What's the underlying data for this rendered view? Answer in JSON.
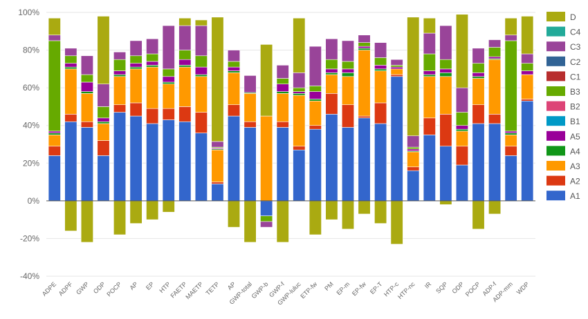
{
  "chart_data": {
    "type": "bar",
    "stacked": true,
    "title": "",
    "xlabel": "",
    "ylabel": "",
    "ylim": [
      -40,
      100
    ],
    "yticks": [
      -40,
      -20,
      0,
      20,
      40,
      60,
      80,
      100
    ],
    "ytick_suffix": "%",
    "grid": true,
    "legend_position": "right",
    "categories": [
      "ADPE",
      "ADPF",
      "GWP",
      "ODP",
      "POCP",
      "AP",
      "EP",
      "HTP",
      "FAETP",
      "MAETP",
      "TETP",
      "AP",
      "GWP-total",
      "GWP-b",
      "GWP-f",
      "GWP-luluc",
      "ETP-fw",
      "PM",
      "EP-m",
      "EP-fw",
      "EP-T",
      "HTP-c",
      "HTP-nc",
      "IR",
      "SQP",
      "ODP",
      "POCP",
      "ADP-f",
      "ADP-mm",
      "WDP"
    ],
    "series": [
      {
        "name": "A1",
        "color": "#3366cc",
        "values": [
          24,
          42,
          39,
          24,
          47,
          45,
          41,
          43,
          42,
          36,
          9,
          45,
          39,
          -8,
          39,
          27,
          38,
          46,
          39,
          44,
          41,
          66,
          16,
          35,
          29,
          19,
          41,
          41,
          24,
          53
        ]
      },
      {
        "name": "A2",
        "color": "#dc3912",
        "values": [
          5,
          4,
          3,
          8,
          4,
          7,
          8,
          6,
          8,
          11,
          1,
          6,
          3,
          0,
          3,
          2,
          2,
          11,
          12,
          1,
          11,
          1,
          2,
          9,
          17,
          10,
          10,
          5,
          5,
          1
        ]
      },
      {
        "name": "A3",
        "color": "#ff9900",
        "values": [
          6,
          24,
          15,
          9,
          15,
          18,
          22,
          13,
          21,
          19,
          17,
          17,
          15,
          45,
          15,
          27,
          13,
          10,
          15,
          35,
          17,
          3,
          8,
          22,
          20,
          8,
          14,
          29,
          6,
          13
        ]
      },
      {
        "name": "A4",
        "color": "#109618",
        "values": [
          1,
          1,
          1,
          1,
          1,
          1,
          1,
          1,
          1,
          1,
          0.5,
          1,
          0.5,
          0,
          1,
          1,
          1,
          1,
          2,
          1,
          1,
          0,
          0.5,
          1,
          2,
          1,
          1,
          0.5,
          1,
          0
        ]
      },
      {
        "name": "A5",
        "color": "#990099",
        "values": [
          1,
          2,
          5,
          2,
          2,
          2,
          2,
          3,
          3,
          4,
          0.5,
          2,
          0,
          0,
          4,
          1,
          4,
          2,
          2,
          1,
          2,
          1,
          1,
          2,
          2,
          2,
          2,
          1,
          1,
          2
        ]
      },
      {
        "name": "B1",
        "color": "#0099c6",
        "values": [
          0,
          0,
          0,
          0,
          0,
          0,
          0,
          0,
          0,
          0,
          0,
          0,
          0,
          0,
          0,
          0,
          0,
          0,
          0,
          0,
          0,
          0,
          0,
          0,
          0,
          0,
          0,
          0,
          0,
          0
        ]
      },
      {
        "name": "B2",
        "color": "#dd4477",
        "values": [
          0,
          0,
          0,
          0,
          0,
          0,
          0,
          0,
          0,
          0,
          0,
          0,
          0,
          0,
          0,
          0,
          0,
          0,
          0,
          0,
          0,
          0,
          0,
          0,
          0,
          0,
          0,
          0,
          0,
          0
        ]
      },
      {
        "name": "B3",
        "color": "#66aa00",
        "values": [
          48,
          4,
          4,
          6,
          6,
          4,
          4,
          4,
          5,
          6,
          0.5,
          3,
          0,
          -3,
          3,
          2,
          3,
          5,
          4,
          2,
          4,
          1,
          1,
          9,
          5,
          7,
          5,
          5,
          48,
          4
        ]
      },
      {
        "name": "C1",
        "color": "#b82e2e",
        "values": [
          0,
          0,
          0,
          0,
          0,
          0,
          0,
          0,
          0,
          0,
          0,
          0,
          0,
          0,
          0,
          0,
          0,
          0,
          0,
          0,
          0,
          0,
          0,
          0,
          0,
          0,
          0,
          0,
          0,
          0
        ]
      },
      {
        "name": "C2",
        "color": "#316395",
        "values": [
          0,
          0,
          0,
          0,
          0,
          0,
          0,
          0,
          0,
          0,
          0,
          0,
          0,
          0,
          0,
          0,
          0,
          0,
          0,
          0,
          0,
          0,
          0,
          0,
          0,
          0,
          0,
          0,
          0,
          0
        ]
      },
      {
        "name": "C3",
        "color": "#994499",
        "values": [
          3,
          4,
          10,
          12,
          4,
          8,
          8,
          23,
          13,
          16,
          3,
          6,
          9,
          -3,
          7,
          8,
          21,
          11,
          11,
          4,
          8,
          3,
          6,
          11,
          18,
          13,
          8,
          4,
          3,
          5
        ]
      },
      {
        "name": "C4",
        "color": "#22aa99",
        "values": [
          0,
          0,
          0,
          0,
          0,
          0,
          0,
          0,
          0,
          0,
          0,
          0,
          0,
          0,
          0,
          0,
          0,
          0,
          0,
          0,
          0,
          0,
          0,
          0,
          0,
          0,
          0,
          0,
          0,
          0
        ]
      },
      {
        "name": "D",
        "color": "#aaaa11",
        "values": [
          9,
          -16,
          -22,
          36,
          -18,
          -12,
          -10,
          -6,
          4,
          3,
          66,
          -14,
          -22,
          38,
          -22,
          29,
          -18,
          -10,
          -15,
          -7,
          -12,
          -23,
          63,
          8,
          -2,
          39,
          -15,
          -7,
          9,
          20
        ]
      }
    ]
  }
}
